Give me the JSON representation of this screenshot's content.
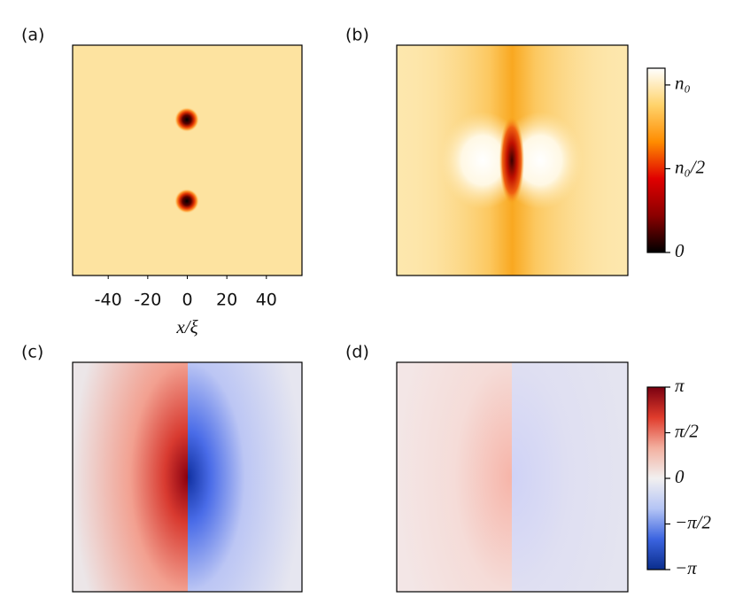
{
  "chart_data": [
    {
      "type": "heatmap",
      "panel_label": "(a)",
      "xlim": [
        -58,
        58
      ],
      "xticks": [
        -40,
        -20,
        0,
        20,
        40
      ],
      "xlabel": "x/ξ",
      "colormap": [
        "#000000",
        "#8b0000",
        "#e00000",
        "#ff8c00",
        "#ffd36b",
        "#ffffff"
      ]
    },
    {
      "type": "heatmap",
      "panel_label": "(b)",
      "colormap": [
        "#000000",
        "#8b0000",
        "#e00000",
        "#ff8c00",
        "#ffd36b",
        "#ffffff"
      ],
      "colorbar": {
        "lim": [
          0,
          1.1
        ],
        "ticks": [
          {
            "value": 1,
            "label": "n₀"
          },
          {
            "value": 0.5,
            "label": "n₀/2"
          },
          0
        ]
      }
    },
    {
      "type": "heatmap",
      "panel_label": "(c)",
      "colormap": [
        "#0a2d8c",
        "#3b64e0",
        "#b4c4f5",
        "#f2f0f0",
        "#f3b0a0",
        "#e03c2c",
        "#7a0010"
      ]
    },
    {
      "type": "heatmap",
      "panel_label": "(d)",
      "colormap": [
        "#0a2d8c",
        "#3b64e0",
        "#b4c4f5",
        "#f2f0f0",
        "#f3b0a0",
        "#e03c2c",
        "#7a0010"
      ],
      "colorbar": {
        "lim": [
          -3.14159,
          3.14159
        ],
        "ticks": [
          {
            "value": 3.14159,
            "label": "π"
          },
          {
            "value": 1.5708,
            "label": "π/2"
          },
          0,
          {
            "value": -1.5708,
            "label": "−π/2"
          },
          {
            "value": -3.14159,
            "label": "−π"
          }
        ]
      }
    }
  ]
}
